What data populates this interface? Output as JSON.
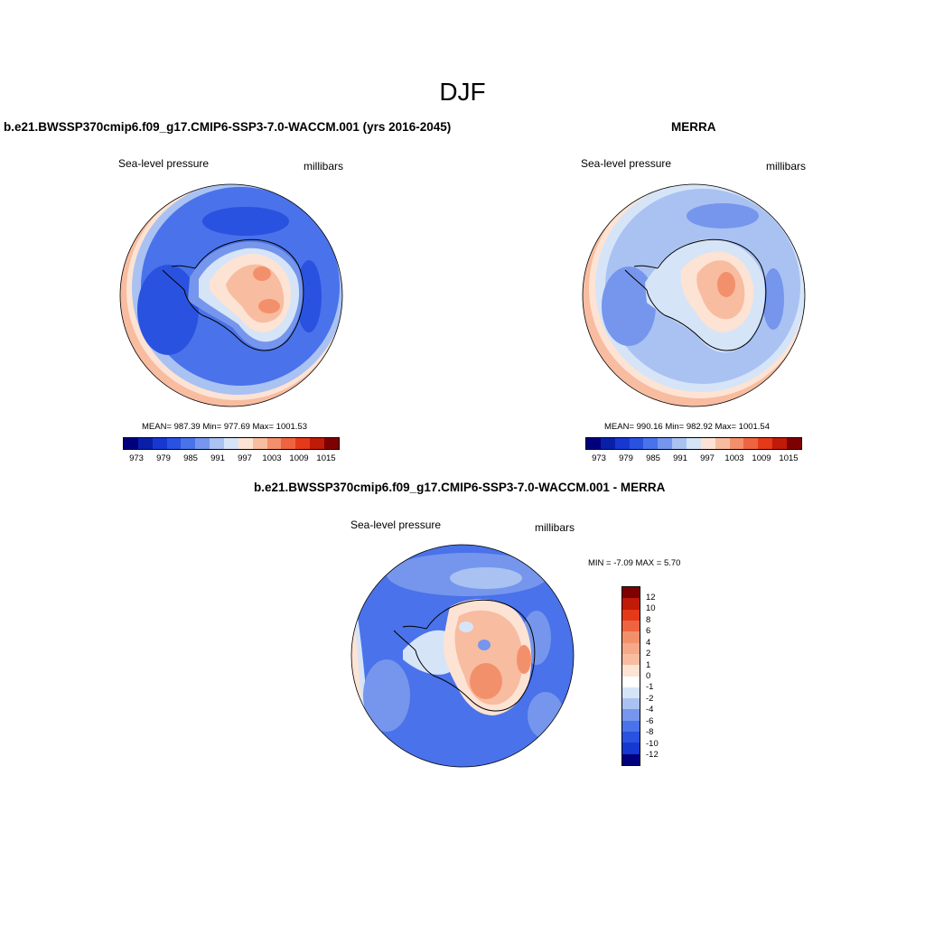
{
  "figure_title": "DJF",
  "panels": [
    {
      "title": "b.e21.BWSSP370cmip6.f09_g17.CMIP6-SSP3-7.0-WACCM.001 (yrs 2016-2045)",
      "left_label": "Sea-level pressure",
      "right_label": "millibars",
      "stats": "MEAN= 987.39  Min= 977.69  Max= 1001.53"
    },
    {
      "title": "MERRA",
      "left_label": "Sea-level pressure",
      "right_label": "millibars",
      "stats": "MEAN= 990.16  Min= 982.92  Max= 1001.54"
    },
    {
      "title": "b.e21.BWSSP370cmip6.f09_g17.CMIP6-SSP3-7.0-WACCM.001 - MERRA",
      "left_label": "Sea-level pressure",
      "right_label": "millibars",
      "stats": "MIN =  -7.09 MAX =   5.70"
    }
  ],
  "abs_colorbar": {
    "tick_labels": [
      "973",
      "979",
      "985",
      "991",
      "997",
      "1003",
      "1009",
      "1015"
    ],
    "colors": [
      "#00007f",
      "#0a1fa8",
      "#1638d0",
      "#2a52e0",
      "#4a72ea",
      "#7596ec",
      "#a9c2f2",
      "#d6e4f8",
      "#fde3d4",
      "#f8bca0",
      "#f3906c",
      "#ee6440",
      "#e43a1a",
      "#c01a08",
      "#7f0000"
    ]
  },
  "diff_colorbar": {
    "tick_labels": [
      "12",
      "10",
      "8",
      "6",
      "4",
      "2",
      "1",
      "0",
      "-1",
      "-2",
      "-4",
      "-6",
      "-8",
      "-10",
      "-12"
    ],
    "colors": [
      "#7f0000",
      "#c01a08",
      "#e43a1a",
      "#ee6440",
      "#f3906c",
      "#f6a988",
      "#f8bca0",
      "#fde3d4",
      "#ffffff",
      "#d6e4f8",
      "#a9c2f2",
      "#7596ec",
      "#4a72ea",
      "#2a52e0",
      "#1638d0",
      "#00007f"
    ]
  }
}
